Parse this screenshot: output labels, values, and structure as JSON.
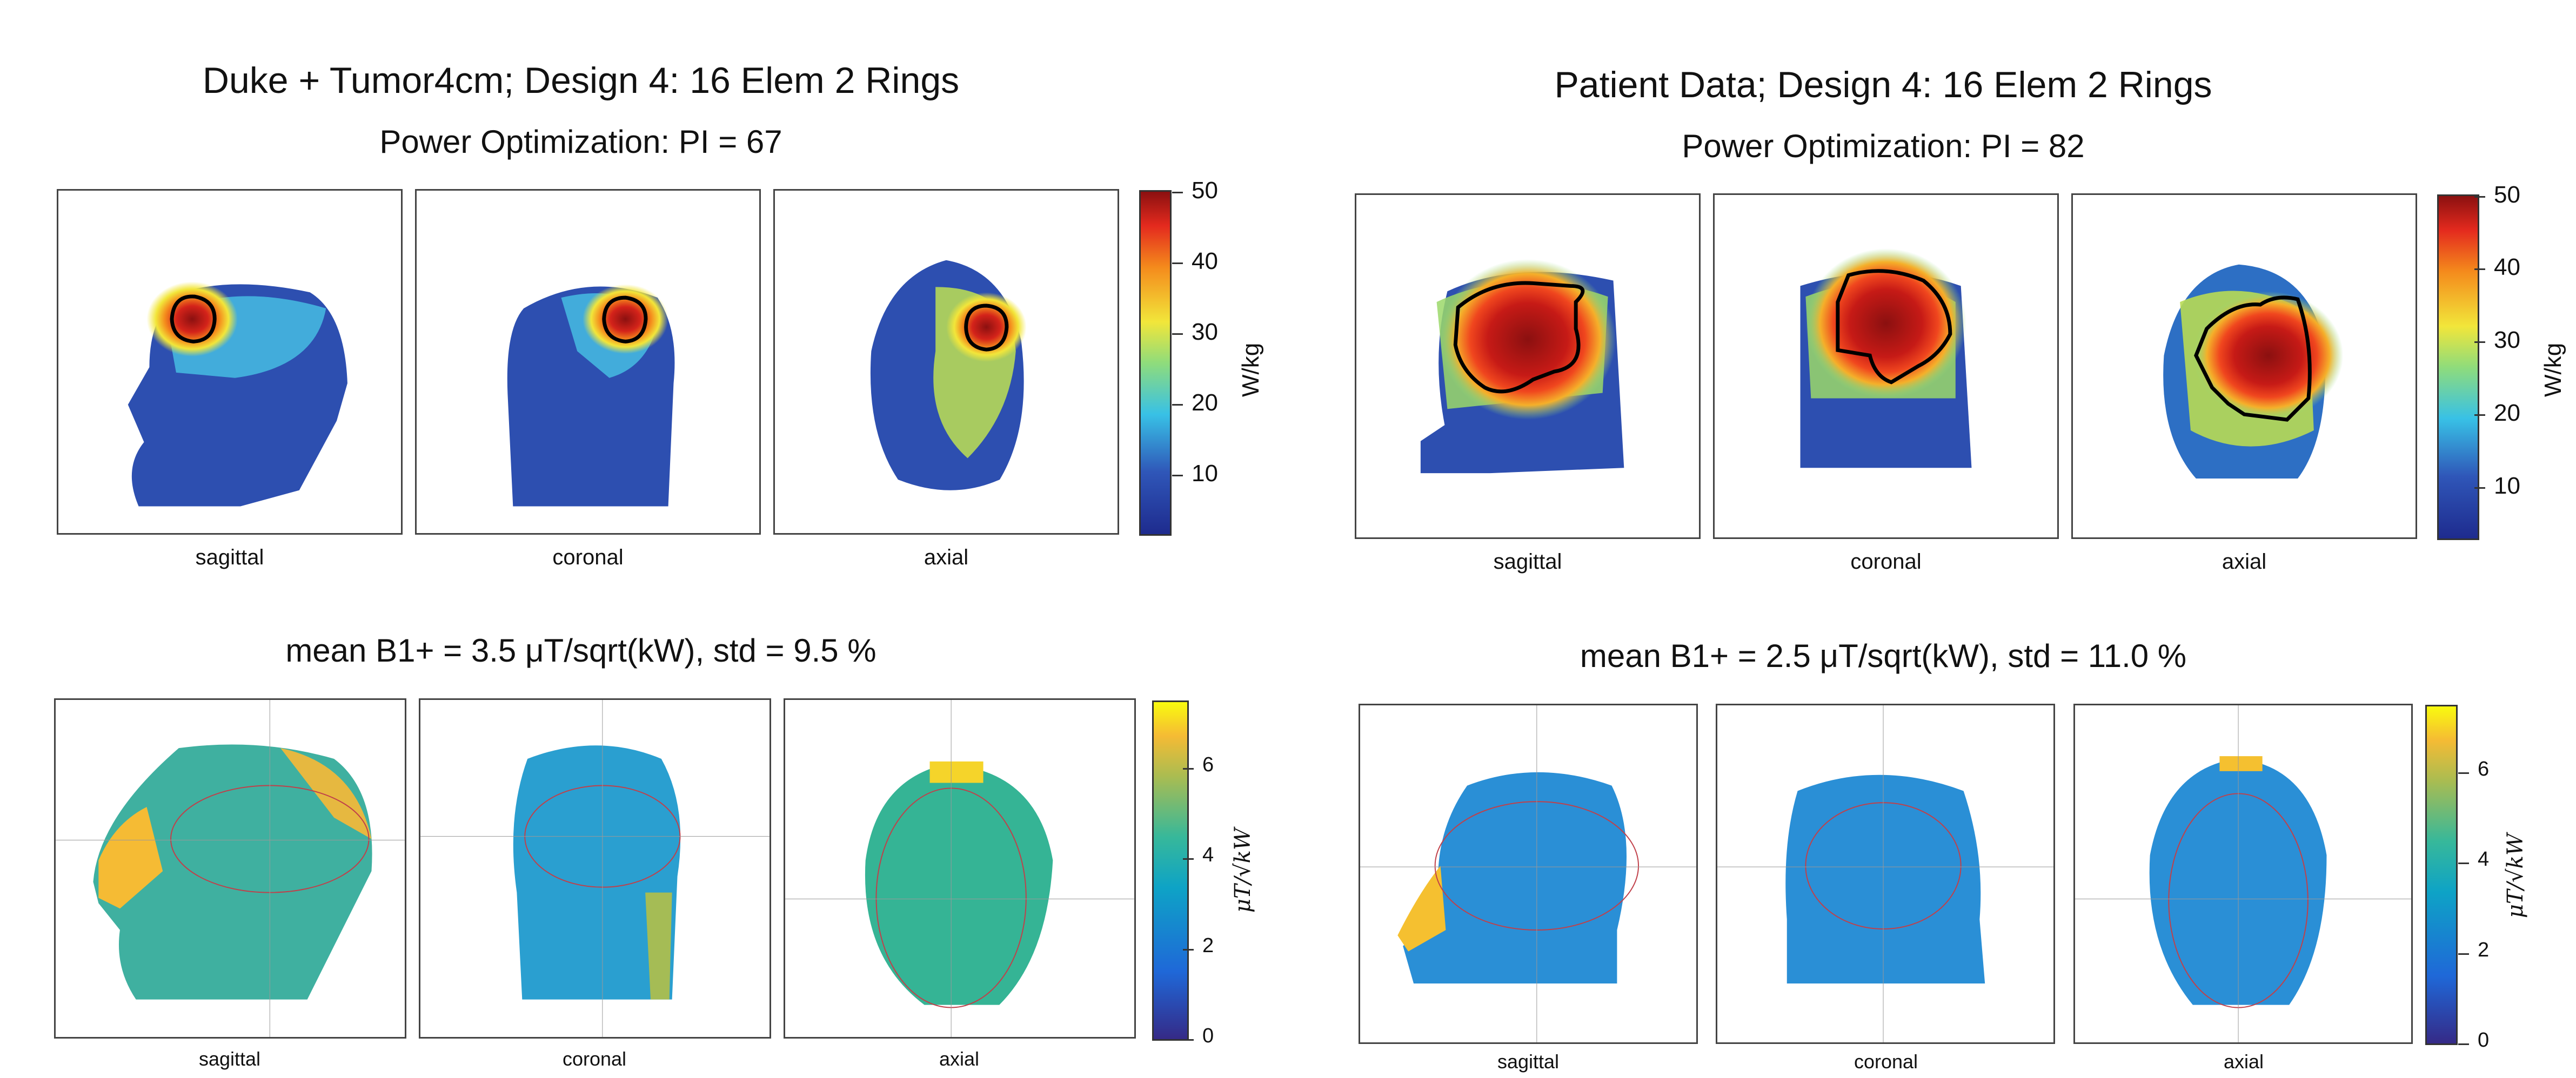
{
  "figure": {
    "left": {
      "title": "Duke + Tumor4cm; Design 4: 16 Elem 2 Rings",
      "sar_subtitle": "Power Optimization: PI = 67",
      "b1_subtitle": "mean B1+ = 3.5 μT/sqrt(kW), std = 9.5 %"
    },
    "right": {
      "title": "Patient Data; Design 4: 16 Elem 2 Rings",
      "sar_subtitle": "Power Optimization: PI = 82",
      "b1_subtitle": "mean B1+ = 2.5 μT/sqrt(kW), std = 11.0 %"
    }
  },
  "chart_data": [
    {
      "type": "heatmap",
      "title": "Duke + Tumor4cm; Design 4: 16 Elem 2 Rings",
      "subtitle": "Power Optimization: PI = 67",
      "views": [
        "sagittal",
        "coronal",
        "axial"
      ],
      "colorbar": {
        "label": "W/kg",
        "ticks": [
          10,
          20,
          30,
          40,
          50
        ],
        "range": [
          2,
          50
        ],
        "colormap": "jet"
      }
    },
    {
      "type": "heatmap",
      "title": "mean B1+ = 3.5 μT/sqrt(kW), std = 9.5 %",
      "views": [
        "sagittal",
        "coronal",
        "axial"
      ],
      "colorbar": {
        "label": "μT/√kW",
        "ticks": [
          0,
          2,
          4,
          6
        ],
        "range": [
          0,
          7.5
        ],
        "colormap": "parula"
      }
    },
    {
      "type": "heatmap",
      "title": "Patient Data; Design 4: 16 Elem 2 Rings",
      "subtitle": "Power Optimization: PI = 82",
      "views": [
        "sagittal",
        "coronal",
        "axial"
      ],
      "colorbar": {
        "label": "W/kg",
        "ticks": [
          10,
          20,
          30,
          40,
          50
        ],
        "range": [
          3,
          50
        ],
        "colormap": "jet"
      }
    },
    {
      "type": "heatmap",
      "title": "mean B1+ = 2.5 μT/sqrt(kW), std = 11.0 %",
      "views": [
        "sagittal",
        "coronal",
        "axial"
      ],
      "colorbar": {
        "label": "μT/√kW",
        "ticks": [
          0,
          2,
          4,
          6
        ],
        "range": [
          0,
          7.5
        ],
        "colormap": "parula"
      }
    }
  ],
  "labels": {
    "sagittal": "sagittal",
    "coronal": "coronal",
    "axial": "axial",
    "sar_unit": "W/kg",
    "b1_unit": "μT/√kW"
  },
  "sar_ticks": [
    "50",
    "40",
    "30",
    "20",
    "10"
  ],
  "b1_ticks": [
    "6",
    "4",
    "2",
    "0"
  ],
  "colors": {
    "sar_low": "#2a2f8f",
    "sar_mid": "#f0e04a",
    "sar_high": "#8b1010",
    "b1_low": "#352a87",
    "b1_mid": "#26b0a6",
    "b1_high": "#f9fb0e",
    "contour": "#000000"
  }
}
